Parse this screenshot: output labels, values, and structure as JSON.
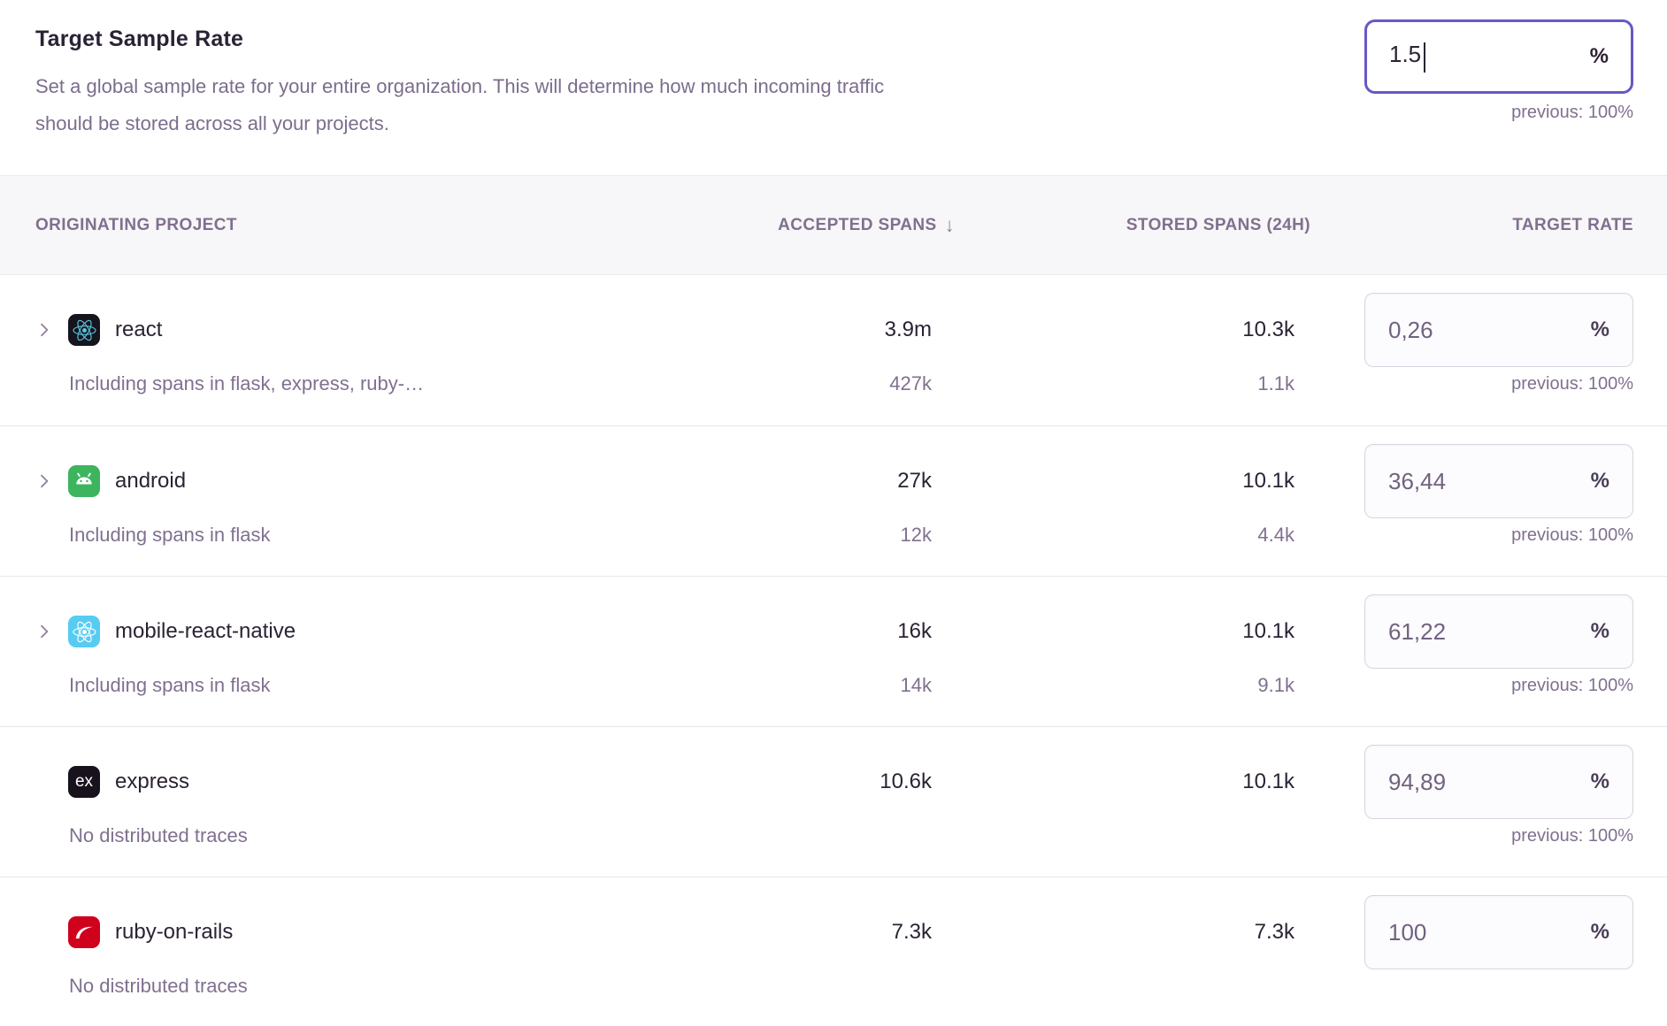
{
  "header": {
    "title": "Target Sample Rate",
    "description_line1": "Set a global sample rate for your entire organization. This will determine how much incoming traffic",
    "description_line2": "should be stored across all your projects.",
    "input_value": "1.5",
    "percent_suffix": "%",
    "previous_label": "previous: 100%"
  },
  "table": {
    "percent_suffix": "%",
    "columns": {
      "project": "Originating Project",
      "accepted": "Accepted Spans",
      "sort_icon": "↓",
      "stored": "Stored Spans (24h)",
      "target": "Target Rate"
    },
    "rows": [
      {
        "name": "react",
        "icon": "react",
        "expandable": true,
        "accepted": "3.9m",
        "stored": "10.3k",
        "rate": "0,26",
        "sub_label": "Including spans in flask, express, ruby-…",
        "sub_accepted": "427k",
        "sub_stored": "1.1k",
        "previous": "previous: 100%"
      },
      {
        "name": "android",
        "icon": "android",
        "expandable": true,
        "accepted": "27k",
        "stored": "10.1k",
        "rate": "36,44",
        "sub_label": "Including spans in flask",
        "sub_accepted": "12k",
        "sub_stored": "4.4k",
        "previous": "previous: 100%"
      },
      {
        "name": "mobile-react-native",
        "icon": "react-native",
        "expandable": true,
        "accepted": "16k",
        "stored": "10.1k",
        "rate": "61,22",
        "sub_label": "Including spans in flask",
        "sub_accepted": "14k",
        "sub_stored": "9.1k",
        "previous": "previous: 100%"
      },
      {
        "name": "express",
        "icon": "express",
        "expandable": false,
        "accepted": "10.6k",
        "stored": "10.1k",
        "rate": "94,89",
        "sub_label": "No distributed traces",
        "sub_accepted": "",
        "sub_stored": "",
        "previous": "previous: 100%"
      },
      {
        "name": "ruby-on-rails",
        "icon": "ruby-on-rails",
        "expandable": false,
        "accepted": "7.3k",
        "stored": "7.3k",
        "rate": "100",
        "sub_label": "No distributed traces",
        "sub_accepted": "",
        "sub_stored": "",
        "previous": ""
      }
    ]
  },
  "colors": {
    "focus_border": "#6559c5",
    "text_dark": "#2b2233",
    "text_muted": "#80708f",
    "tiles": {
      "react": "#16141d",
      "react-native": "#57ccf2",
      "android": "#3cb55e",
      "express": "#17121c",
      "ruby-on-rails": "#d0011c"
    },
    "logos": {
      "react": "#58c4dc",
      "react-native": "#ffffff",
      "android": "#ffffff",
      "express": "#ffffff",
      "ruby-on-rails": "#ffffff"
    }
  }
}
